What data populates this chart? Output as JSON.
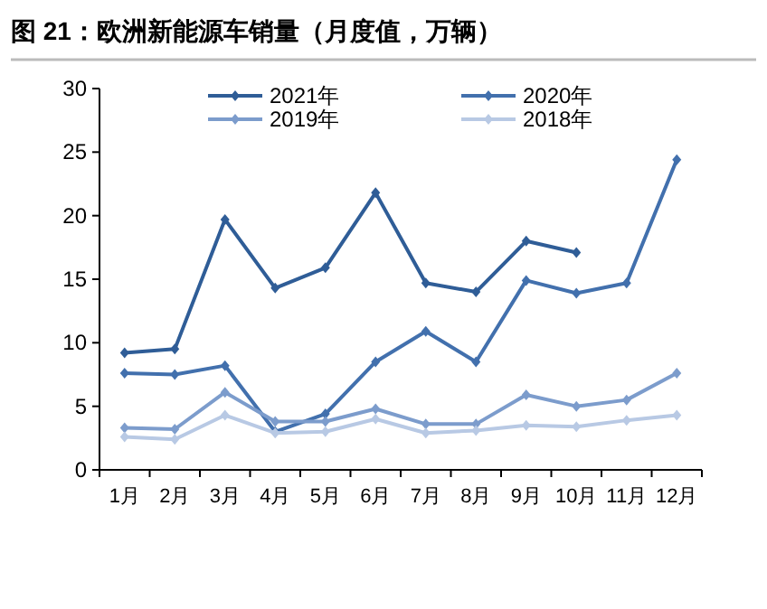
{
  "chart_data": {
    "type": "line",
    "title": "图 21：欧洲新能源车销量（月度值，万辆）",
    "categories": [
      "1月",
      "2月",
      "3月",
      "4月",
      "5月",
      "6月",
      "7月",
      "8月",
      "9月",
      "10月",
      "11月",
      "12月"
    ],
    "series": [
      {
        "name": "2021年",
        "color": "#2f5d97",
        "values": [
          9.2,
          9.5,
          19.7,
          14.3,
          15.9,
          21.8,
          14.7,
          14.0,
          18.0,
          17.1,
          null,
          null
        ]
      },
      {
        "name": "2020年",
        "color": "#4270ad",
        "values": [
          7.6,
          7.5,
          8.2,
          3.0,
          4.4,
          8.5,
          10.9,
          8.5,
          14.9,
          13.9,
          14.7,
          24.4
        ]
      },
      {
        "name": "2019年",
        "color": "#7c9ccc",
        "values": [
          3.3,
          3.2,
          6.1,
          3.8,
          3.8,
          4.8,
          3.6,
          3.6,
          5.9,
          5.0,
          5.5,
          7.6
        ]
      },
      {
        "name": "2018年",
        "color": "#b8c9e4",
        "values": [
          2.6,
          2.4,
          4.3,
          2.9,
          3.0,
          4.0,
          2.9,
          3.1,
          3.5,
          3.4,
          3.9,
          4.3
        ]
      }
    ],
    "ylim": [
      0,
      30
    ],
    "yticks": [
      0,
      5,
      10,
      15,
      20,
      25,
      30
    ],
    "legend": "top",
    "marker": "diamond",
    "line_style": "solid"
  }
}
